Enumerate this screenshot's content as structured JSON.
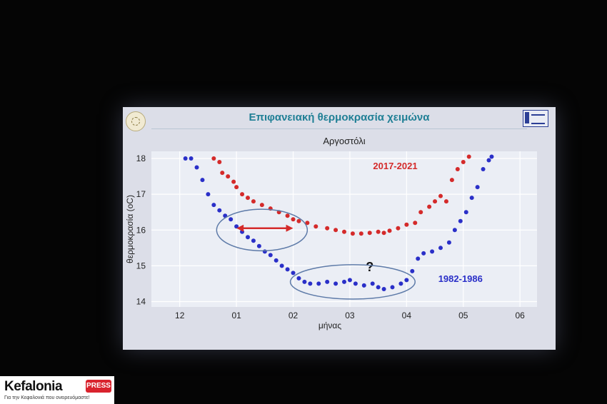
{
  "slide": {
    "title": "Επιφανειακή θερμοκρασία χειμώνα"
  },
  "brand": {
    "name": "Kefalonia",
    "badge": "PRESS",
    "tagline": "Για την Κεφαλονιά που ονειρευόμαστε!"
  },
  "colors": {
    "series_2017": "#d42a2a",
    "series_1982": "#2a2fc8",
    "title": "#1f7f95",
    "annotation": "#5d7aa8"
  },
  "chart_data": {
    "type": "scatter",
    "title": "Αργοστόλι",
    "xlabel": "μήνας",
    "ylabel": "θερμοκρασία (oC)",
    "xlim": [
      11.5,
      18.3
    ],
    "ylim": [
      13.85,
      18.2
    ],
    "x_ticks": [
      12,
      13,
      14,
      15,
      16,
      17,
      18
    ],
    "x_tick_labels": [
      "12",
      "01",
      "02",
      "03",
      "04",
      "05",
      "06"
    ],
    "y_ticks": [
      14,
      15,
      16,
      17,
      18
    ],
    "grid": true,
    "series": [
      {
        "name": "2017-2021",
        "points": [
          [
            12.6,
            18.0
          ],
          [
            12.7,
            17.9
          ],
          [
            12.75,
            17.6
          ],
          [
            12.85,
            17.5
          ],
          [
            12.95,
            17.35
          ],
          [
            13.0,
            17.2
          ],
          [
            13.1,
            17.0
          ],
          [
            13.2,
            16.9
          ],
          [
            13.3,
            16.8
          ],
          [
            13.45,
            16.7
          ],
          [
            13.6,
            16.6
          ],
          [
            13.75,
            16.5
          ],
          [
            13.9,
            16.4
          ],
          [
            14.0,
            16.3
          ],
          [
            14.1,
            16.25
          ],
          [
            14.25,
            16.2
          ],
          [
            14.4,
            16.1
          ],
          [
            14.6,
            16.05
          ],
          [
            14.75,
            16.0
          ],
          [
            14.9,
            15.95
          ],
          [
            15.05,
            15.9
          ],
          [
            15.2,
            15.9
          ],
          [
            15.35,
            15.92
          ],
          [
            15.5,
            15.95
          ],
          [
            15.6,
            15.92
          ],
          [
            15.7,
            15.98
          ],
          [
            15.85,
            16.05
          ],
          [
            16.0,
            16.15
          ],
          [
            16.15,
            16.2
          ],
          [
            16.25,
            16.5
          ],
          [
            16.4,
            16.65
          ],
          [
            16.5,
            16.8
          ],
          [
            16.6,
            16.95
          ],
          [
            16.7,
            16.8
          ],
          [
            16.8,
            17.4
          ],
          [
            16.9,
            17.7
          ],
          [
            17.0,
            17.9
          ],
          [
            17.1,
            18.05
          ]
        ]
      },
      {
        "name": "1982-1986",
        "points": [
          [
            12.1,
            18.0
          ],
          [
            12.2,
            18.0
          ],
          [
            12.3,
            17.75
          ],
          [
            12.4,
            17.4
          ],
          [
            12.5,
            17.0
          ],
          [
            12.6,
            16.7
          ],
          [
            12.7,
            16.55
          ],
          [
            12.8,
            16.4
          ],
          [
            12.9,
            16.3
          ],
          [
            13.0,
            16.1
          ],
          [
            13.1,
            15.95
          ],
          [
            13.2,
            15.8
          ],
          [
            13.3,
            15.7
          ],
          [
            13.4,
            15.55
          ],
          [
            13.5,
            15.4
          ],
          [
            13.6,
            15.3
          ],
          [
            13.7,
            15.15
          ],
          [
            13.8,
            15.0
          ],
          [
            13.9,
            14.9
          ],
          [
            14.0,
            14.8
          ],
          [
            14.1,
            14.65
          ],
          [
            14.2,
            14.55
          ],
          [
            14.3,
            14.5
          ],
          [
            14.45,
            14.5
          ],
          [
            14.6,
            14.55
          ],
          [
            14.75,
            14.5
          ],
          [
            14.9,
            14.55
          ],
          [
            15.0,
            14.6
          ],
          [
            15.1,
            14.5
          ],
          [
            15.25,
            14.45
          ],
          [
            15.4,
            14.5
          ],
          [
            15.5,
            14.4
          ],
          [
            15.6,
            14.35
          ],
          [
            15.75,
            14.4
          ],
          [
            15.9,
            14.5
          ],
          [
            16.0,
            14.6
          ],
          [
            16.1,
            14.85
          ],
          [
            16.2,
            15.2
          ],
          [
            16.3,
            15.35
          ],
          [
            16.45,
            15.4
          ],
          [
            16.6,
            15.5
          ],
          [
            16.75,
            15.65
          ],
          [
            16.85,
            16.0
          ],
          [
            16.95,
            16.25
          ],
          [
            17.05,
            16.5
          ],
          [
            17.15,
            16.9
          ],
          [
            17.25,
            17.2
          ],
          [
            17.35,
            17.7
          ],
          [
            17.45,
            17.95
          ],
          [
            17.5,
            18.05
          ]
        ]
      }
    ],
    "annotations": [
      {
        "type": "text",
        "text": "?",
        "x": 15.35,
        "y": 14.85
      },
      {
        "type": "ellipse",
        "cx": 13.45,
        "cy": 16.0,
        "rx": 0.8,
        "ry": 0.58
      },
      {
        "type": "ellipse",
        "cx": 15.05,
        "cy": 14.55,
        "rx": 1.1,
        "ry": 0.48
      },
      {
        "type": "double-arrow",
        "x1": 13.0,
        "y1": 16.05,
        "x2": 14.0,
        "y2": 16.05
      }
    ]
  }
}
